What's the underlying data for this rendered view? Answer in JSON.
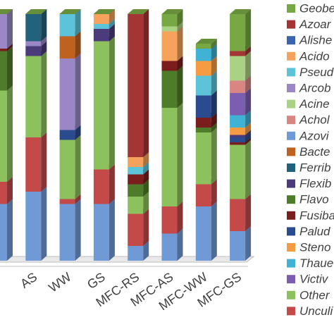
{
  "chart_data": {
    "type": "bar",
    "stacked": true,
    "categories": [
      null,
      "AS",
      "WW",
      "GS",
      "MFC-RS",
      "MFC-AS",
      "MFC-WW",
      "MFC-GS"
    ],
    "series": [
      {
        "name": "Geobe",
        "color": "#77a843",
        "values": [
          0,
          0,
          0,
          0,
          0,
          5,
          2,
          15
        ]
      },
      {
        "name": "Azoar",
        "color": "#a33535",
        "values": [
          0,
          0,
          0,
          0,
          58,
          0,
          0,
          2
        ]
      },
      {
        "name": "Alishe",
        "color": "#3a64ad",
        "values": [
          0,
          0,
          0,
          0,
          0,
          0,
          0,
          0
        ]
      },
      {
        "name": "Acido",
        "color": "#f5a25d",
        "values": [
          0,
          0,
          0,
          4,
          4,
          12,
          0,
          0
        ]
      },
      {
        "name": "Pseud",
        "color": "#5cc3d9",
        "values": [
          0,
          0,
          9,
          2,
          3,
          0,
          8,
          0
        ]
      },
      {
        "name": "Arcob",
        "color": "#9b87c6",
        "values": [
          14,
          2,
          29,
          0,
          0,
          0,
          0,
          0
        ]
      },
      {
        "name": "Acine",
        "color": "#abd185",
        "values": [
          0,
          0,
          0,
          0,
          0,
          2,
          0,
          10
        ]
      },
      {
        "name": "Achol",
        "color": "#d98582",
        "values": [
          0,
          0,
          0,
          0,
          0,
          0,
          0,
          5
        ]
      },
      {
        "name": "Azovi",
        "color": "#6f9ad6",
        "values": [
          23,
          28,
          23,
          23,
          6,
          11,
          22,
          12
        ]
      },
      {
        "name": "Bacte",
        "color": "#c0621f",
        "values": [
          0,
          0,
          9,
          0,
          0,
          0,
          0,
          0
        ]
      },
      {
        "name": "Ferrib",
        "color": "#22627a",
        "values": [
          0,
          11,
          0,
          0,
          0,
          0,
          0,
          0
        ]
      },
      {
        "name": "Flexib",
        "color": "#4b3b7a",
        "values": [
          0,
          4,
          0,
          5,
          0,
          0,
          0,
          1
        ]
      },
      {
        "name": "Flavo",
        "color": "#4f7c2a",
        "values": [
          16,
          0,
          0,
          0,
          5,
          15,
          2,
          0
        ]
      },
      {
        "name": "Fusiba",
        "color": "#7a1d1d",
        "values": [
          1,
          0,
          0,
          0,
          4,
          4,
          4,
          1
        ]
      },
      {
        "name": "Palud",
        "color": "#2b4b8f",
        "values": [
          0,
          0,
          4,
          0,
          0,
          0,
          9,
          2
        ]
      },
      {
        "name": "Steno",
        "color": "#f59b42",
        "values": [
          0,
          0,
          0,
          0,
          0,
          0,
          6,
          3
        ]
      },
      {
        "name": "Thaue",
        "color": "#40b3d4",
        "values": [
          0,
          0,
          0,
          0,
          0,
          0,
          5,
          5
        ]
      },
      {
        "name": "Victiv",
        "color": "#7b5eb0",
        "values": [
          0,
          0,
          0,
          0,
          0,
          0,
          0,
          9
        ]
      },
      {
        "name": "Other",
        "color": "#8dc15e",
        "values": [
          37,
          33,
          24,
          52,
          7,
          40,
          21,
          22
        ]
      },
      {
        "name": "Unculi",
        "color": "#c44a4a",
        "values": [
          9,
          22,
          2,
          14,
          13,
          11,
          9,
          13
        ]
      }
    ]
  }
}
